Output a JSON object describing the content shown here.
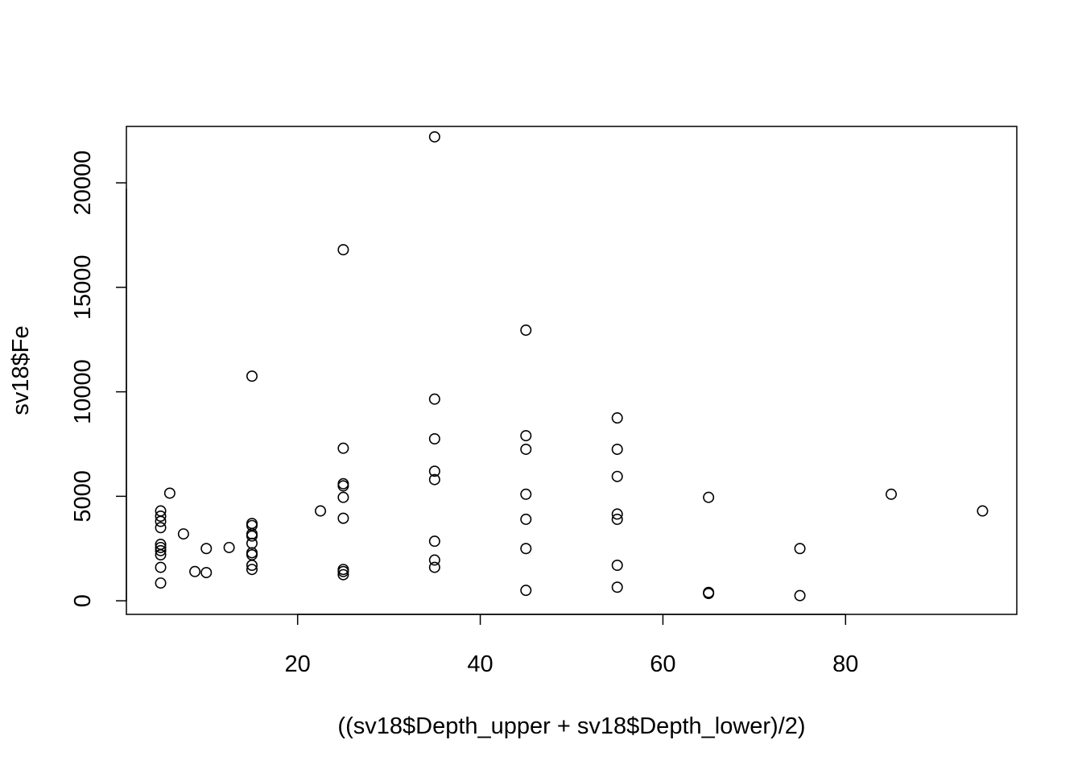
{
  "chart_data": {
    "type": "scatter",
    "title": "",
    "xlabel": "((sv18$Depth_upper + sv18$Depth_lower)/2)",
    "ylabel": "sv18$Fe",
    "xlim": [
      1.25,
      98.75
    ],
    "ylim": [
      -650,
      22700
    ],
    "x_ticks": [
      20,
      40,
      60,
      80
    ],
    "y_ticks": [
      0,
      5000,
      10000,
      15000,
      20000
    ],
    "x_tick_labels": [
      "20",
      "40",
      "60",
      "80"
    ],
    "y_tick_labels": [
      "0",
      "5000",
      "10000",
      "15000",
      "20000"
    ],
    "grid": false,
    "legend": "none",
    "points": [
      {
        "x": 5,
        "y": 4300
      },
      {
        "x": 5,
        "y": 4050
      },
      {
        "x": 5,
        "y": 3800
      },
      {
        "x": 5,
        "y": 3500
      },
      {
        "x": 5,
        "y": 2700
      },
      {
        "x": 5,
        "y": 2550
      },
      {
        "x": 5,
        "y": 2400
      },
      {
        "x": 5,
        "y": 2200
      },
      {
        "x": 5,
        "y": 1600
      },
      {
        "x": 5,
        "y": 850
      },
      {
        "x": 6,
        "y": 5150
      },
      {
        "x": 7.5,
        "y": 3200
      },
      {
        "x": 8.75,
        "y": 1400
      },
      {
        "x": 10,
        "y": 2500
      },
      {
        "x": 10,
        "y": 1350
      },
      {
        "x": 12.5,
        "y": 2550
      },
      {
        "x": 15,
        "y": 10750
      },
      {
        "x": 15,
        "y": 3700
      },
      {
        "x": 15,
        "y": 3600
      },
      {
        "x": 15,
        "y": 3200
      },
      {
        "x": 15,
        "y": 3100
      },
      {
        "x": 15,
        "y": 2750
      },
      {
        "x": 15,
        "y": 2300
      },
      {
        "x": 15,
        "y": 2200
      },
      {
        "x": 15,
        "y": 1700
      },
      {
        "x": 15,
        "y": 1500
      },
      {
        "x": 22.5,
        "y": 4300
      },
      {
        "x": 25,
        "y": 16800
      },
      {
        "x": 25,
        "y": 7300
      },
      {
        "x": 25,
        "y": 5600
      },
      {
        "x": 25,
        "y": 5500
      },
      {
        "x": 25,
        "y": 4950
      },
      {
        "x": 25,
        "y": 3950
      },
      {
        "x": 25,
        "y": 1500
      },
      {
        "x": 25,
        "y": 1400
      },
      {
        "x": 25,
        "y": 1250
      },
      {
        "x": 35,
        "y": 22200
      },
      {
        "x": 35,
        "y": 9650
      },
      {
        "x": 35,
        "y": 7750
      },
      {
        "x": 35,
        "y": 6200
      },
      {
        "x": 35,
        "y": 5800
      },
      {
        "x": 35,
        "y": 2850
      },
      {
        "x": 35,
        "y": 1950
      },
      {
        "x": 35,
        "y": 1600
      },
      {
        "x": 45,
        "y": 12950
      },
      {
        "x": 45,
        "y": 7900
      },
      {
        "x": 45,
        "y": 7250
      },
      {
        "x": 45,
        "y": 5100
      },
      {
        "x": 45,
        "y": 3900
      },
      {
        "x": 45,
        "y": 2500
      },
      {
        "x": 45,
        "y": 500
      },
      {
        "x": 55,
        "y": 8750
      },
      {
        "x": 55,
        "y": 7250
      },
      {
        "x": 55,
        "y": 5950
      },
      {
        "x": 55,
        "y": 4150
      },
      {
        "x": 55,
        "y": 3900
      },
      {
        "x": 55,
        "y": 1700
      },
      {
        "x": 55,
        "y": 650
      },
      {
        "x": 65,
        "y": 4950
      },
      {
        "x": 65,
        "y": 400
      },
      {
        "x": 65,
        "y": 350
      },
      {
        "x": 75,
        "y": 2500
      },
      {
        "x": 75,
        "y": 250
      },
      {
        "x": 85,
        "y": 5100
      },
      {
        "x": 95,
        "y": 4300
      }
    ]
  }
}
